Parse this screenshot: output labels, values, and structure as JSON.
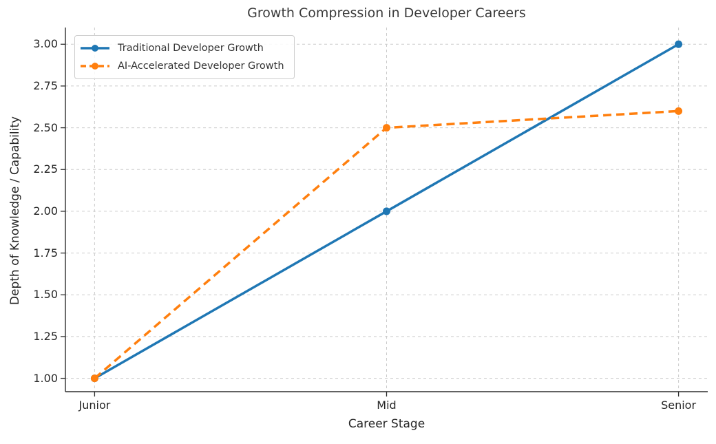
{
  "chart_data": {
    "type": "line",
    "title": "Growth Compression in Developer Careers",
    "xlabel": "Career Stage",
    "ylabel": "Depth of Knowledge / Capability",
    "categories": [
      "Junior",
      "Mid",
      "Senior"
    ],
    "series": [
      {
        "name": "Traditional Developer Growth",
        "values": [
          1.0,
          2.0,
          3.0
        ],
        "color": "#1f77b4",
        "line_style": "solid",
        "marker": "circle"
      },
      {
        "name": "AI-Accelerated Developer Growth",
        "values": [
          1.0,
          2.5,
          2.6
        ],
        "color": "#ff7f0e",
        "line_style": "dashed",
        "marker": "circle"
      }
    ],
    "yticks": [
      1.0,
      1.25,
      1.5,
      1.75,
      2.0,
      2.25,
      2.5,
      2.75,
      3.0
    ],
    "ytick_labels": [
      "1.00",
      "1.25",
      "1.50",
      "1.75",
      "2.00",
      "2.25",
      "2.50",
      "2.75",
      "3.00"
    ],
    "ylim": [
      0.92,
      3.1
    ],
    "grid": true,
    "grid_style": "dashed",
    "legend_position": "upper left",
    "colors": {
      "grid": "#cccccc",
      "spine": "#2e2e2e",
      "tick_text": "#262626",
      "title_text": "#3a3a3a",
      "legend_border": "#cccccc",
      "legend_text": "#333333",
      "background": "#ffffff"
    }
  }
}
